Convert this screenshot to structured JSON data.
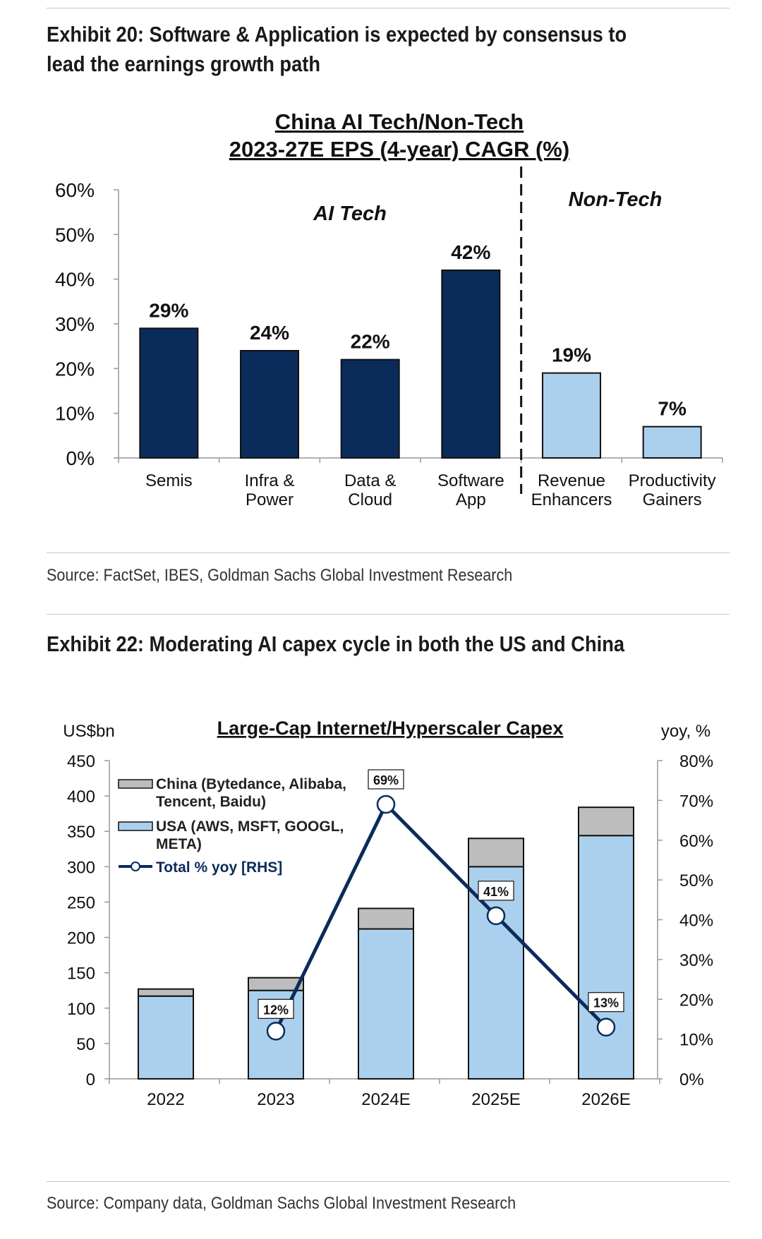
{
  "exhibit20": {
    "title_line1": "Exhibit 20: Software & Application is expected by consensus to",
    "title_line2": "lead the earnings growth path",
    "source": "Source: FactSet, IBES, Goldman Sachs Global Investment Research"
  },
  "exhibit22": {
    "title": "Exhibit 22: Moderating AI capex cycle in both the US and China",
    "source": "Source: Company data, Goldman Sachs Global Investment Research"
  },
  "chart_data": [
    {
      "type": "bar",
      "title_line1": "China AI Tech/Non-Tech",
      "title_line2": "2023-27E EPS (4-year) CAGR (%)",
      "categories": [
        [
          "Semis"
        ],
        [
          "Infra &",
          "Power"
        ],
        [
          "Data &",
          "Cloud"
        ],
        [
          "Software",
          "App"
        ],
        [
          "Revenue",
          "Enhancers"
        ],
        [
          "Productivity",
          "Gainers"
        ]
      ],
      "values": [
        29,
        24,
        22,
        42,
        19,
        7
      ],
      "value_labels": [
        "29%",
        "24%",
        "22%",
        "42%",
        "19%",
        "7%"
      ],
      "groups": [
        "AI Tech",
        "AI Tech",
        "AI Tech",
        "AI Tech",
        "Non-Tech",
        "Non-Tech"
      ],
      "group_labels": {
        "ai_tech": "AI Tech",
        "non_tech": "Non-Tech"
      },
      "colors": {
        "AI Tech": "#0b2b5a",
        "Non-Tech": "#abd0ee"
      },
      "ylim": [
        0,
        60
      ],
      "yticks": [
        0,
        10,
        20,
        30,
        40,
        50,
        60
      ],
      "ytick_labels": [
        "0%",
        "10%",
        "20%",
        "30%",
        "40%",
        "50%",
        "60%"
      ],
      "divider_after_index": 3
    },
    {
      "type": "bar",
      "stacked": true,
      "title": "Large-Cap Internet/Hyperscaler Capex",
      "ylabel_left": "US$bn",
      "ylabel_right": "yoy, %",
      "categories": [
        "2022",
        "2023",
        "2024E",
        "2025E",
        "2026E"
      ],
      "series": [
        {
          "name": "USA",
          "legend_lines": [
            "USA (AWS, MSFT, GOOGL,",
            "META)"
          ],
          "values": [
            117,
            125,
            212,
            300,
            344
          ],
          "color": "#abd0ee"
        },
        {
          "name": "China",
          "legend_lines": [
            "China (Bytedance, Alibaba,",
            "Tencent, Baidu)"
          ],
          "values": [
            10,
            18,
            29,
            40,
            40
          ],
          "color": "#bdbdbd"
        }
      ],
      "line_series": {
        "name": "Total % yoy [RHS]",
        "x": [
          "2023",
          "2024E",
          "2025E",
          "2026E"
        ],
        "values": [
          12,
          69,
          41,
          13
        ],
        "labels": [
          "12%",
          "69%",
          "41%",
          "13%"
        ],
        "color": "#0b2b5a"
      },
      "ylim_left": [
        0,
        450
      ],
      "yticks_left": [
        0,
        50,
        100,
        150,
        200,
        250,
        300,
        350,
        400,
        450
      ],
      "ylim_right": [
        0,
        80
      ],
      "yticks_right": [
        0,
        10,
        20,
        30,
        40,
        50,
        60,
        70,
        80
      ],
      "ytick_labels_right": [
        "0%",
        "10%",
        "20%",
        "30%",
        "40%",
        "50%",
        "60%",
        "70%",
        "80%"
      ]
    }
  ]
}
